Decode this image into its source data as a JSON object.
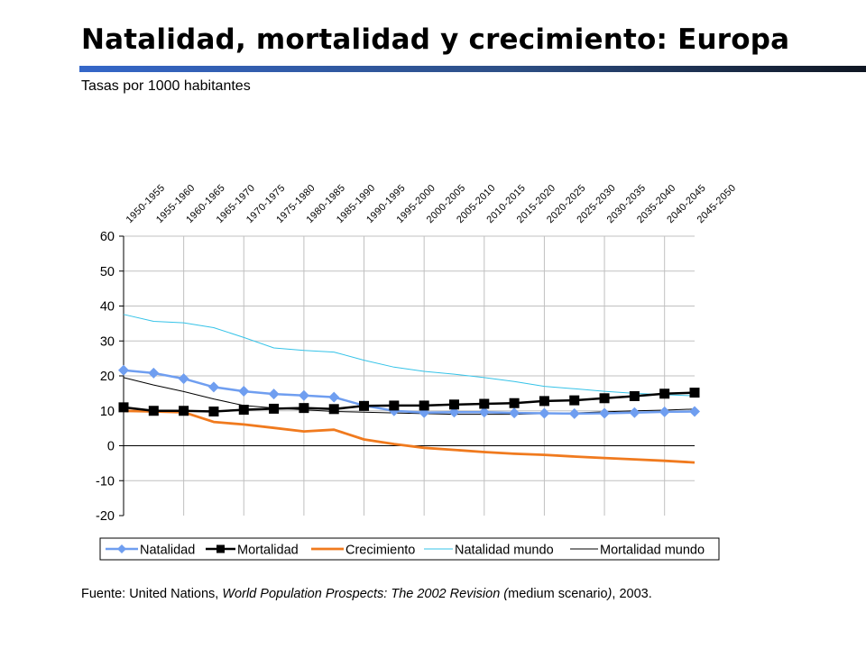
{
  "header": {
    "title": "Natalidad, mortalidad y crecimiento: Europa",
    "subtitle": "Tasas por 1000 habitantes"
  },
  "footer": {
    "source_prefix": "Fuente: United Nations, ",
    "source_italic1": "World Population Prospects: The 2002 Revision (",
    "source_mid": "medium scenario",
    "source_italic2": ")",
    "source_suffix": ", 2003."
  },
  "colors": {
    "natalidad": "#6f9ef0",
    "mortalidad": "#000000",
    "crecimiento": "#f07a1e",
    "natalidad_mundo": "#35c3e8",
    "mortalidad_mundo": "#000000",
    "grid": "#c0c0c0"
  },
  "chart_data": {
    "type": "line",
    "title": "",
    "xlabel": "",
    "ylabel": "",
    "categories": [
      "1950-1955",
      "1955-1960",
      "1960-1965",
      "1965-1970",
      "1970-1975",
      "1975-1980",
      "1980-1985",
      "1985-1990",
      "1990-1995",
      "1995-2000",
      "2000-2005",
      "2005-2010",
      "2010-2015",
      "2015-2020",
      "2020-2025",
      "2025-2030",
      "2030-2035",
      "2035-2040",
      "2040-2045",
      "2045-2050"
    ],
    "x_ticks_at_top": true,
    "ylim": [
      -20,
      60
    ],
    "yticks": [
      -20,
      -10,
      0,
      10,
      20,
      30,
      40,
      50,
      60
    ],
    "grid": true,
    "legend": "bottom",
    "series": [
      {
        "name": "Natalidad",
        "marker": "diamond",
        "color_key": "natalidad",
        "values": [
          21.6,
          20.8,
          19.2,
          16.8,
          15.6,
          14.8,
          14.4,
          13.9,
          11.5,
          10.0,
          9.5,
          9.6,
          9.6,
          9.4,
          9.3,
          9.2,
          9.3,
          9.5,
          9.7,
          9.8
        ]
      },
      {
        "name": "Mortalidad",
        "marker": "square",
        "color_key": "mortalidad",
        "values": [
          11.0,
          10.0,
          10.0,
          9.8,
          10.3,
          10.6,
          10.8,
          10.5,
          11.4,
          11.5,
          11.5,
          11.8,
          12.0,
          12.2,
          12.8,
          13.0,
          13.6,
          14.2,
          14.9,
          15.2
        ]
      },
      {
        "name": "Crecimiento",
        "marker": "none",
        "color_key": "crecimiento",
        "values": [
          10.0,
          9.8,
          9.6,
          6.8,
          6.1,
          5.1,
          4.1,
          4.6,
          1.8,
          0.5,
          -0.6,
          -1.2,
          -1.8,
          -2.3,
          -2.6,
          -3.1,
          -3.5,
          -3.9,
          -4.3,
          -4.8
        ]
      },
      {
        "name": "Natalidad mundo",
        "marker": "none",
        "color_key": "natalidad_mundo",
        "values": [
          37.6,
          35.6,
          35.2,
          33.8,
          31.0,
          28.0,
          27.3,
          26.8,
          24.5,
          22.5,
          21.3,
          20.5,
          19.5,
          18.4,
          17.0,
          16.3,
          15.6,
          15.0,
          14.6,
          14.3
        ]
      },
      {
        "name": "Mortalidad mundo",
        "marker": "none",
        "color_key": "mortalidad_mundo",
        "values": [
          19.5,
          17.4,
          15.5,
          13.4,
          11.5,
          10.8,
          10.3,
          9.8,
          9.6,
          9.4,
          9.2,
          9.0,
          9.0,
          9.0,
          9.2,
          9.4,
          9.7,
          10.0,
          10.2,
          10.5
        ]
      }
    ]
  }
}
